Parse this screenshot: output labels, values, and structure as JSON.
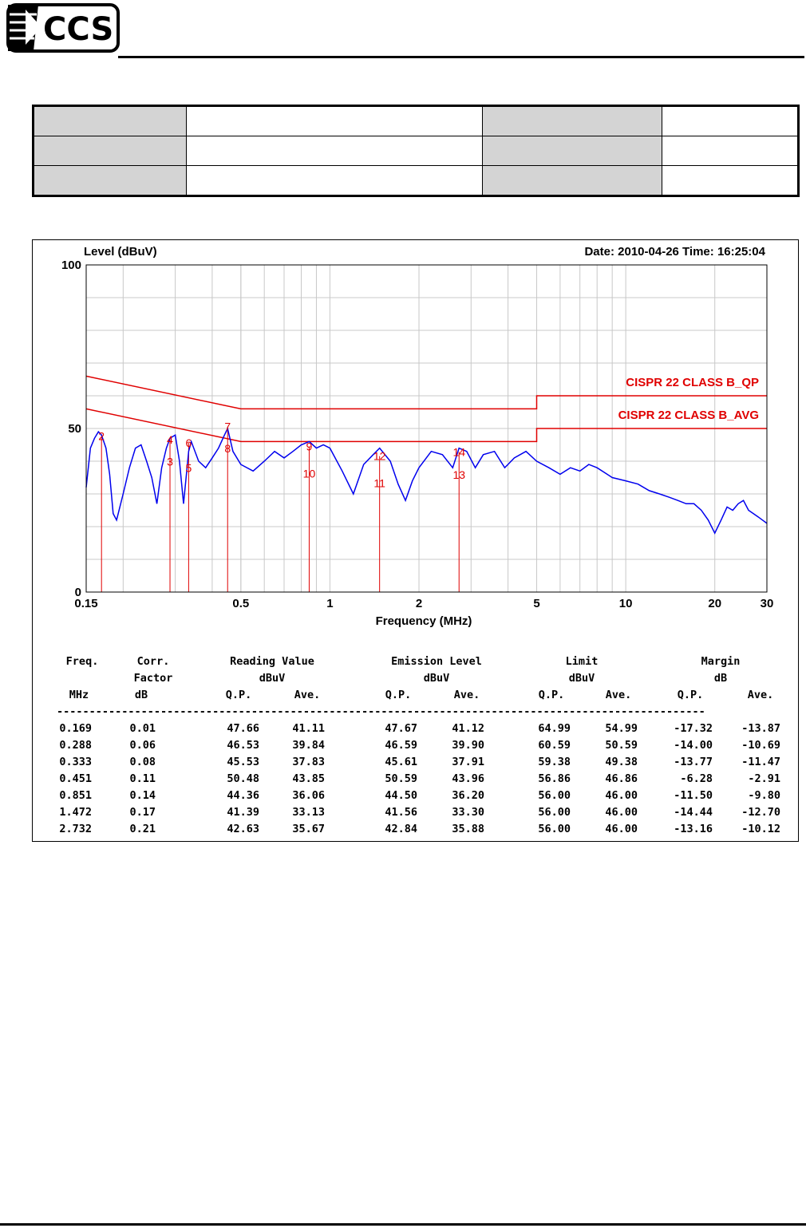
{
  "logo": {
    "text": "CCS"
  },
  "chart_data": {
    "type": "line",
    "ylabel": "Level (dBuV)",
    "xlabel": "Frequency (MHz)",
    "date_time": "Date: 2010-04-26  Time: 16:25:04",
    "x_scale": "log",
    "xlim": [
      0.15,
      30
    ],
    "ylim": [
      0,
      100
    ],
    "y_ticks": [
      "0",
      "50",
      "100"
    ],
    "x_ticks": [
      {
        "v": 0.15,
        "label": "0.15"
      },
      {
        "v": 0.5,
        "label": "0.5"
      },
      {
        "v": 1,
        "label": "1"
      },
      {
        "v": 2,
        "label": "2"
      },
      {
        "v": 5,
        "label": "5"
      },
      {
        "v": 10,
        "label": "10"
      },
      {
        "v": 20,
        "label": "20"
      },
      {
        "v": 30,
        "label": "30"
      }
    ],
    "grid": true,
    "colors": {
      "trace": "#0000ee",
      "limits": "#e00000",
      "grid": "#c8c8c8"
    },
    "limit_lines": [
      {
        "name": "CISPR 22 CLASS B_QP",
        "points": [
          [
            0.15,
            66
          ],
          [
            0.5,
            56
          ],
          [
            5,
            56
          ],
          [
            5,
            60
          ],
          [
            30,
            60
          ]
        ]
      },
      {
        "name": "CISPR 22 CLASS B_AVG",
        "points": [
          [
            0.15,
            56
          ],
          [
            0.5,
            46
          ],
          [
            5,
            46
          ],
          [
            5,
            50
          ],
          [
            30,
            50
          ]
        ]
      }
    ],
    "trace": {
      "x": [
        0.15,
        0.155,
        0.16,
        0.165,
        0.169,
        0.175,
        0.18,
        0.185,
        0.19,
        0.2,
        0.21,
        0.22,
        0.23,
        0.24,
        0.25,
        0.26,
        0.27,
        0.28,
        0.288,
        0.3,
        0.31,
        0.32,
        0.333,
        0.34,
        0.36,
        0.38,
        0.4,
        0.42,
        0.44,
        0.451,
        0.47,
        0.5,
        0.55,
        0.6,
        0.65,
        0.7,
        0.75,
        0.8,
        0.851,
        0.9,
        0.95,
        1.0,
        1.1,
        1.2,
        1.3,
        1.4,
        1.472,
        1.6,
        1.7,
        1.8,
        1.9,
        2.0,
        2.2,
        2.4,
        2.6,
        2.732,
        2.9,
        3.1,
        3.3,
        3.6,
        3.9,
        4.2,
        4.6,
        5.0,
        5.5,
        6.0,
        6.5,
        7.0,
        7.5,
        8.0,
        9.0,
        10,
        11,
        12,
        13,
        14,
        15,
        16,
        17,
        18,
        19,
        20,
        21,
        22,
        23,
        24,
        25,
        26,
        27,
        28,
        29,
        30
      ],
      "y": [
        32,
        44,
        47,
        49,
        48,
        44,
        36,
        24,
        22,
        30,
        38,
        44,
        45,
        40,
        35,
        27,
        38,
        44,
        47,
        48,
        40,
        27,
        43,
        46,
        40,
        38,
        41,
        44,
        48,
        50,
        43,
        39,
        37,
        40,
        43,
        41,
        43,
        45,
        46,
        44,
        45,
        44,
        37,
        30,
        39,
        42,
        44,
        40,
        33,
        28,
        34,
        38,
        43,
        42,
        38,
        44,
        43,
        38,
        42,
        43,
        38,
        41,
        43,
        40,
        38,
        36,
        38,
        37,
        39,
        38,
        35,
        34,
        33,
        31,
        30,
        29,
        28,
        27,
        27,
        25,
        22,
        18,
        22,
        26,
        25,
        27,
        28,
        25,
        24,
        23,
        22,
        21
      ]
    },
    "markers": [
      {
        "id": "1",
        "x": 0.169,
        "y": 41.12,
        "show_label": false
      },
      {
        "id": "2",
        "x": 0.169,
        "y": 47.67,
        "show_label": true
      },
      {
        "id": "3",
        "x": 0.288,
        "y": 39.9,
        "show_label": true
      },
      {
        "id": "4",
        "x": 0.288,
        "y": 46.59,
        "show_label": true
      },
      {
        "id": "5",
        "x": 0.333,
        "y": 37.91,
        "show_label": true
      },
      {
        "id": "6",
        "x": 0.333,
        "y": 45.61,
        "show_label": true
      },
      {
        "id": "7",
        "x": 0.451,
        "y": 50.59,
        "show_label": true
      },
      {
        "id": "8",
        "x": 0.451,
        "y": 43.96,
        "show_label": true
      },
      {
        "id": "9",
        "x": 0.851,
        "y": 44.5,
        "show_label": true
      },
      {
        "id": "10",
        "x": 0.851,
        "y": 36.2,
        "show_label": true
      },
      {
        "id": "11",
        "x": 1.472,
        "y": 33.3,
        "show_label": true
      },
      {
        "id": "12",
        "x": 1.472,
        "y": 41.56,
        "show_label": true
      },
      {
        "id": "13",
        "x": 2.732,
        "y": 35.88,
        "show_label": true
      },
      {
        "id": "14",
        "x": 2.732,
        "y": 42.84,
        "show_label": true
      }
    ]
  },
  "table": {
    "header1": [
      "Freq.",
      "Corr.",
      "Reading Value",
      "Emission Level",
      "Limit",
      "Margin"
    ],
    "header2": [
      "",
      "Factor",
      "dBuV",
      "dBuV",
      "dBuV",
      "dB"
    ],
    "header3": [
      "MHz",
      "dB",
      "Q.P.",
      "Ave.",
      "Q.P.",
      "Ave.",
      "Q.P.",
      "Ave.",
      "Q.P.",
      "Ave."
    ],
    "rule": "----------------------------------------------------------------------------------------------------",
    "rows": [
      [
        "0.169",
        "0.01",
        "47.66",
        "41.11",
        "47.67",
        "41.12",
        "64.99",
        "54.99",
        "-17.32",
        "-13.87"
      ],
      [
        "0.288",
        "0.06",
        "46.53",
        "39.84",
        "46.59",
        "39.90",
        "60.59",
        "50.59",
        "-14.00",
        "-10.69"
      ],
      [
        "0.333",
        "0.08",
        "45.53",
        "37.83",
        "45.61",
        "37.91",
        "59.38",
        "49.38",
        "-13.77",
        "-11.47"
      ],
      [
        "0.451",
        "0.11",
        "50.48",
        "43.85",
        "50.59",
        "43.96",
        "56.86",
        "46.86",
        "-6.28",
        "-2.91"
      ],
      [
        "0.851",
        "0.14",
        "44.36",
        "36.06",
        "44.50",
        "36.20",
        "56.00",
        "46.00",
        "-11.50",
        "-9.80"
      ],
      [
        "1.472",
        "0.17",
        "41.39",
        "33.13",
        "41.56",
        "33.30",
        "56.00",
        "46.00",
        "-14.44",
        "-12.70"
      ],
      [
        "2.732",
        "0.21",
        "42.63",
        "35.67",
        "42.84",
        "35.88",
        "56.00",
        "46.00",
        "-13.16",
        "-10.12"
      ]
    ]
  }
}
